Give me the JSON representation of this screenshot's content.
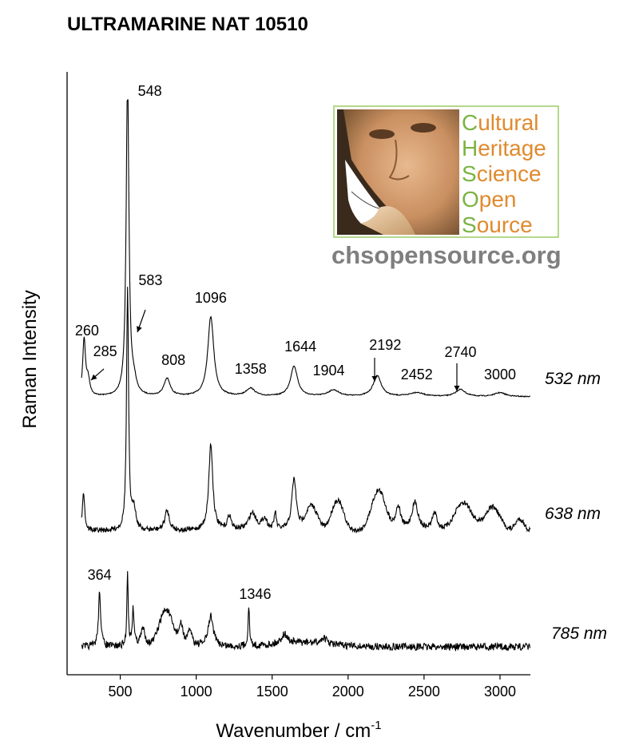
{
  "chart_data": {
    "type": "line",
    "title": "ULTRAMARINE NAT 10510",
    "xlabel": "Wavenumber / cm",
    "xlabel_superscript": "-1",
    "ylabel": "Raman Intensity",
    "xlim": [
      150,
      3200
    ],
    "x_ticks": [
      500,
      1000,
      1500,
      2000,
      2500,
      3000
    ],
    "x_tick_labels": [
      "500",
      "1000",
      "1500",
      "2000",
      "2500",
      "3000"
    ],
    "y_ticks_shown": false,
    "grid": false,
    "series": [
      {
        "name": "532 nm",
        "color": "#000000",
        "peaks": [
          {
            "x": 260,
            "label": "260"
          },
          {
            "x": 285,
            "label": "285"
          },
          {
            "x": 548,
            "label": "548"
          },
          {
            "x": 583,
            "label": "583"
          },
          {
            "x": 808,
            "label": "808"
          },
          {
            "x": 1096,
            "label": "1096"
          },
          {
            "x": 1358,
            "label": "1358"
          },
          {
            "x": 1644,
            "label": "1644"
          },
          {
            "x": 1904,
            "label": "1904"
          },
          {
            "x": 2192,
            "label": "2192"
          },
          {
            "x": 2452,
            "label": "2452"
          },
          {
            "x": 2740,
            "label": "2740"
          },
          {
            "x": 3000,
            "label": "3000"
          }
        ]
      },
      {
        "name": "638 nm",
        "color": "#000000",
        "peaks": []
      },
      {
        "name": "785 nm",
        "color": "#000000",
        "peaks": [
          {
            "x": 364,
            "label": "364"
          },
          {
            "x": 1346,
            "label": "1346"
          }
        ]
      }
    ]
  },
  "logo": {
    "words": [
      {
        "first": "C",
        "rest": "ultural"
      },
      {
        "first": "H",
        "rest": "eritage"
      },
      {
        "first": "S",
        "rest": "cience"
      },
      {
        "first": "O",
        "rest": "pen"
      },
      {
        "first": "S",
        "rest": "ource"
      }
    ],
    "url": "chsopensource.org",
    "colors": {
      "initial": "#7cb342",
      "rest": "#e08a2e",
      "url": "#7f7f7f",
      "border": "#9ccc65"
    }
  }
}
